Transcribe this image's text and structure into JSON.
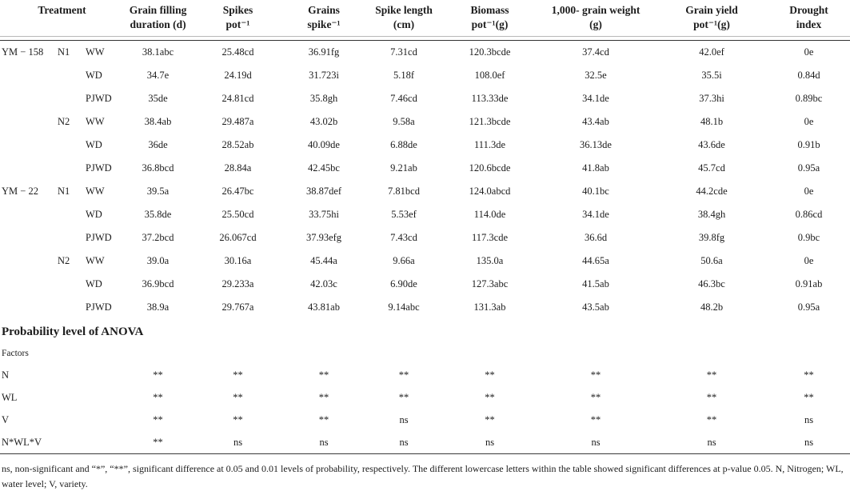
{
  "table": {
    "headers": [
      {
        "line1": "Treatment",
        "line2": ""
      },
      {
        "line1": "Grain filling",
        "line2": "duration (d)"
      },
      {
        "line1": "Spikes",
        "line2": "pot⁻¹"
      },
      {
        "line1": "Grains",
        "line2": "spike⁻¹"
      },
      {
        "line1": "Spike length",
        "line2": "(cm)"
      },
      {
        "line1": "Biomass",
        "line2": "pot⁻¹(g)"
      },
      {
        "line1": "1,000- grain weight",
        "line2": "(g)"
      },
      {
        "line1": "Grain yield",
        "line2": "pot⁻¹(g)"
      },
      {
        "line1": "Drought",
        "line2": "index"
      }
    ],
    "rows": [
      {
        "variety": "YM − 158",
        "nitrogen": "N1",
        "water": "WW",
        "values": [
          "38.1abc",
          "25.48cd",
          "36.91fg",
          "7.31cd",
          "120.3bcde",
          "37.4cd",
          "42.0ef",
          "0e"
        ]
      },
      {
        "variety": "",
        "nitrogen": "",
        "water": "WD",
        "values": [
          "34.7e",
          "24.19d",
          "31.723i",
          "5.18f",
          "108.0ef",
          "32.5e",
          "35.5i",
          "0.84d"
        ]
      },
      {
        "variety": "",
        "nitrogen": "",
        "water": "PJWD",
        "values": [
          "35de",
          "24.81cd",
          "35.8gh",
          "7.46cd",
          "113.33de",
          "34.1de",
          "37.3hi",
          "0.89bc"
        ]
      },
      {
        "variety": "",
        "nitrogen": "N2",
        "water": "WW",
        "values": [
          "38.4ab",
          "29.487a",
          "43.02b",
          "9.58a",
          "121.3bcde",
          "43.4ab",
          "48.1b",
          "0e"
        ]
      },
      {
        "variety": "",
        "nitrogen": "",
        "water": "WD",
        "values": [
          "36de",
          "28.52ab",
          "40.09de",
          "6.88de",
          "111.3de",
          "36.13de",
          "43.6de",
          "0.91b"
        ]
      },
      {
        "variety": "",
        "nitrogen": "",
        "water": "PJWD",
        "values": [
          "36.8bcd",
          "28.84a",
          "42.45bc",
          "9.21ab",
          "120.6bcde",
          "41.8ab",
          "45.7cd",
          "0.95a"
        ]
      },
      {
        "variety": "YM − 22",
        "nitrogen": "N1",
        "water": "WW",
        "values": [
          "39.5a",
          "26.47bc",
          "38.87def",
          "7.81bcd",
          "124.0abcd",
          "40.1bc",
          "44.2cde",
          "0e"
        ]
      },
      {
        "variety": "",
        "nitrogen": "",
        "water": "WD",
        "values": [
          "35.8de",
          "25.50cd",
          "33.75hi",
          "5.53ef",
          "114.0de",
          "34.1de",
          "38.4gh",
          "0.86cd"
        ]
      },
      {
        "variety": "",
        "nitrogen": "",
        "water": "PJWD",
        "values": [
          "37.2bcd",
          "26.067cd",
          "37.93efg",
          "7.43cd",
          "117.3cde",
          "36.6d",
          "39.8fg",
          "0.9bc"
        ]
      },
      {
        "variety": "",
        "nitrogen": "N2",
        "water": "WW",
        "values": [
          "39.0a",
          "30.16a",
          "45.44a",
          "9.66a",
          "135.0a",
          "44.65a",
          "50.6a",
          "0e"
        ]
      },
      {
        "variety": "",
        "nitrogen": "",
        "water": "WD",
        "values": [
          "36.9bcd",
          "29.233a",
          "42.03c",
          "6.90de",
          "127.3abc",
          "41.5ab",
          "46.3bc",
          "0.91ab"
        ]
      },
      {
        "variety": "",
        "nitrogen": "",
        "water": "PJWD",
        "values": [
          "38.9a",
          "29.767a",
          "43.81ab",
          "9.14abc",
          "131.3ab",
          "43.5ab",
          "48.2b",
          "0.95a"
        ]
      }
    ],
    "anova": {
      "heading": "Probability level of ANOVA",
      "factors_label": "Factors",
      "rows": [
        {
          "factor": "N",
          "values": [
            "**",
            "**",
            "**",
            "**",
            "**",
            "**",
            "**",
            "**"
          ]
        },
        {
          "factor": "WL",
          "values": [
            "**",
            "**",
            "**",
            "**",
            "**",
            "**",
            "**",
            "**"
          ]
        },
        {
          "factor": "V",
          "values": [
            "**",
            "**",
            "**",
            "ns",
            "**",
            "**",
            "**",
            "ns"
          ]
        },
        {
          "factor": "N*WL*V",
          "values": [
            "**",
            "ns",
            "ns",
            "ns",
            "ns",
            "ns",
            "ns",
            "ns"
          ]
        }
      ]
    },
    "footnote": "ns, non-significant and “*”, “**”, significant difference at 0.05 and 0.01 levels of probability, respectively. The different lowercase letters within the table showed significant differences at p-value 0.05. N, Nitrogen; WL, water level; V, variety."
  }
}
